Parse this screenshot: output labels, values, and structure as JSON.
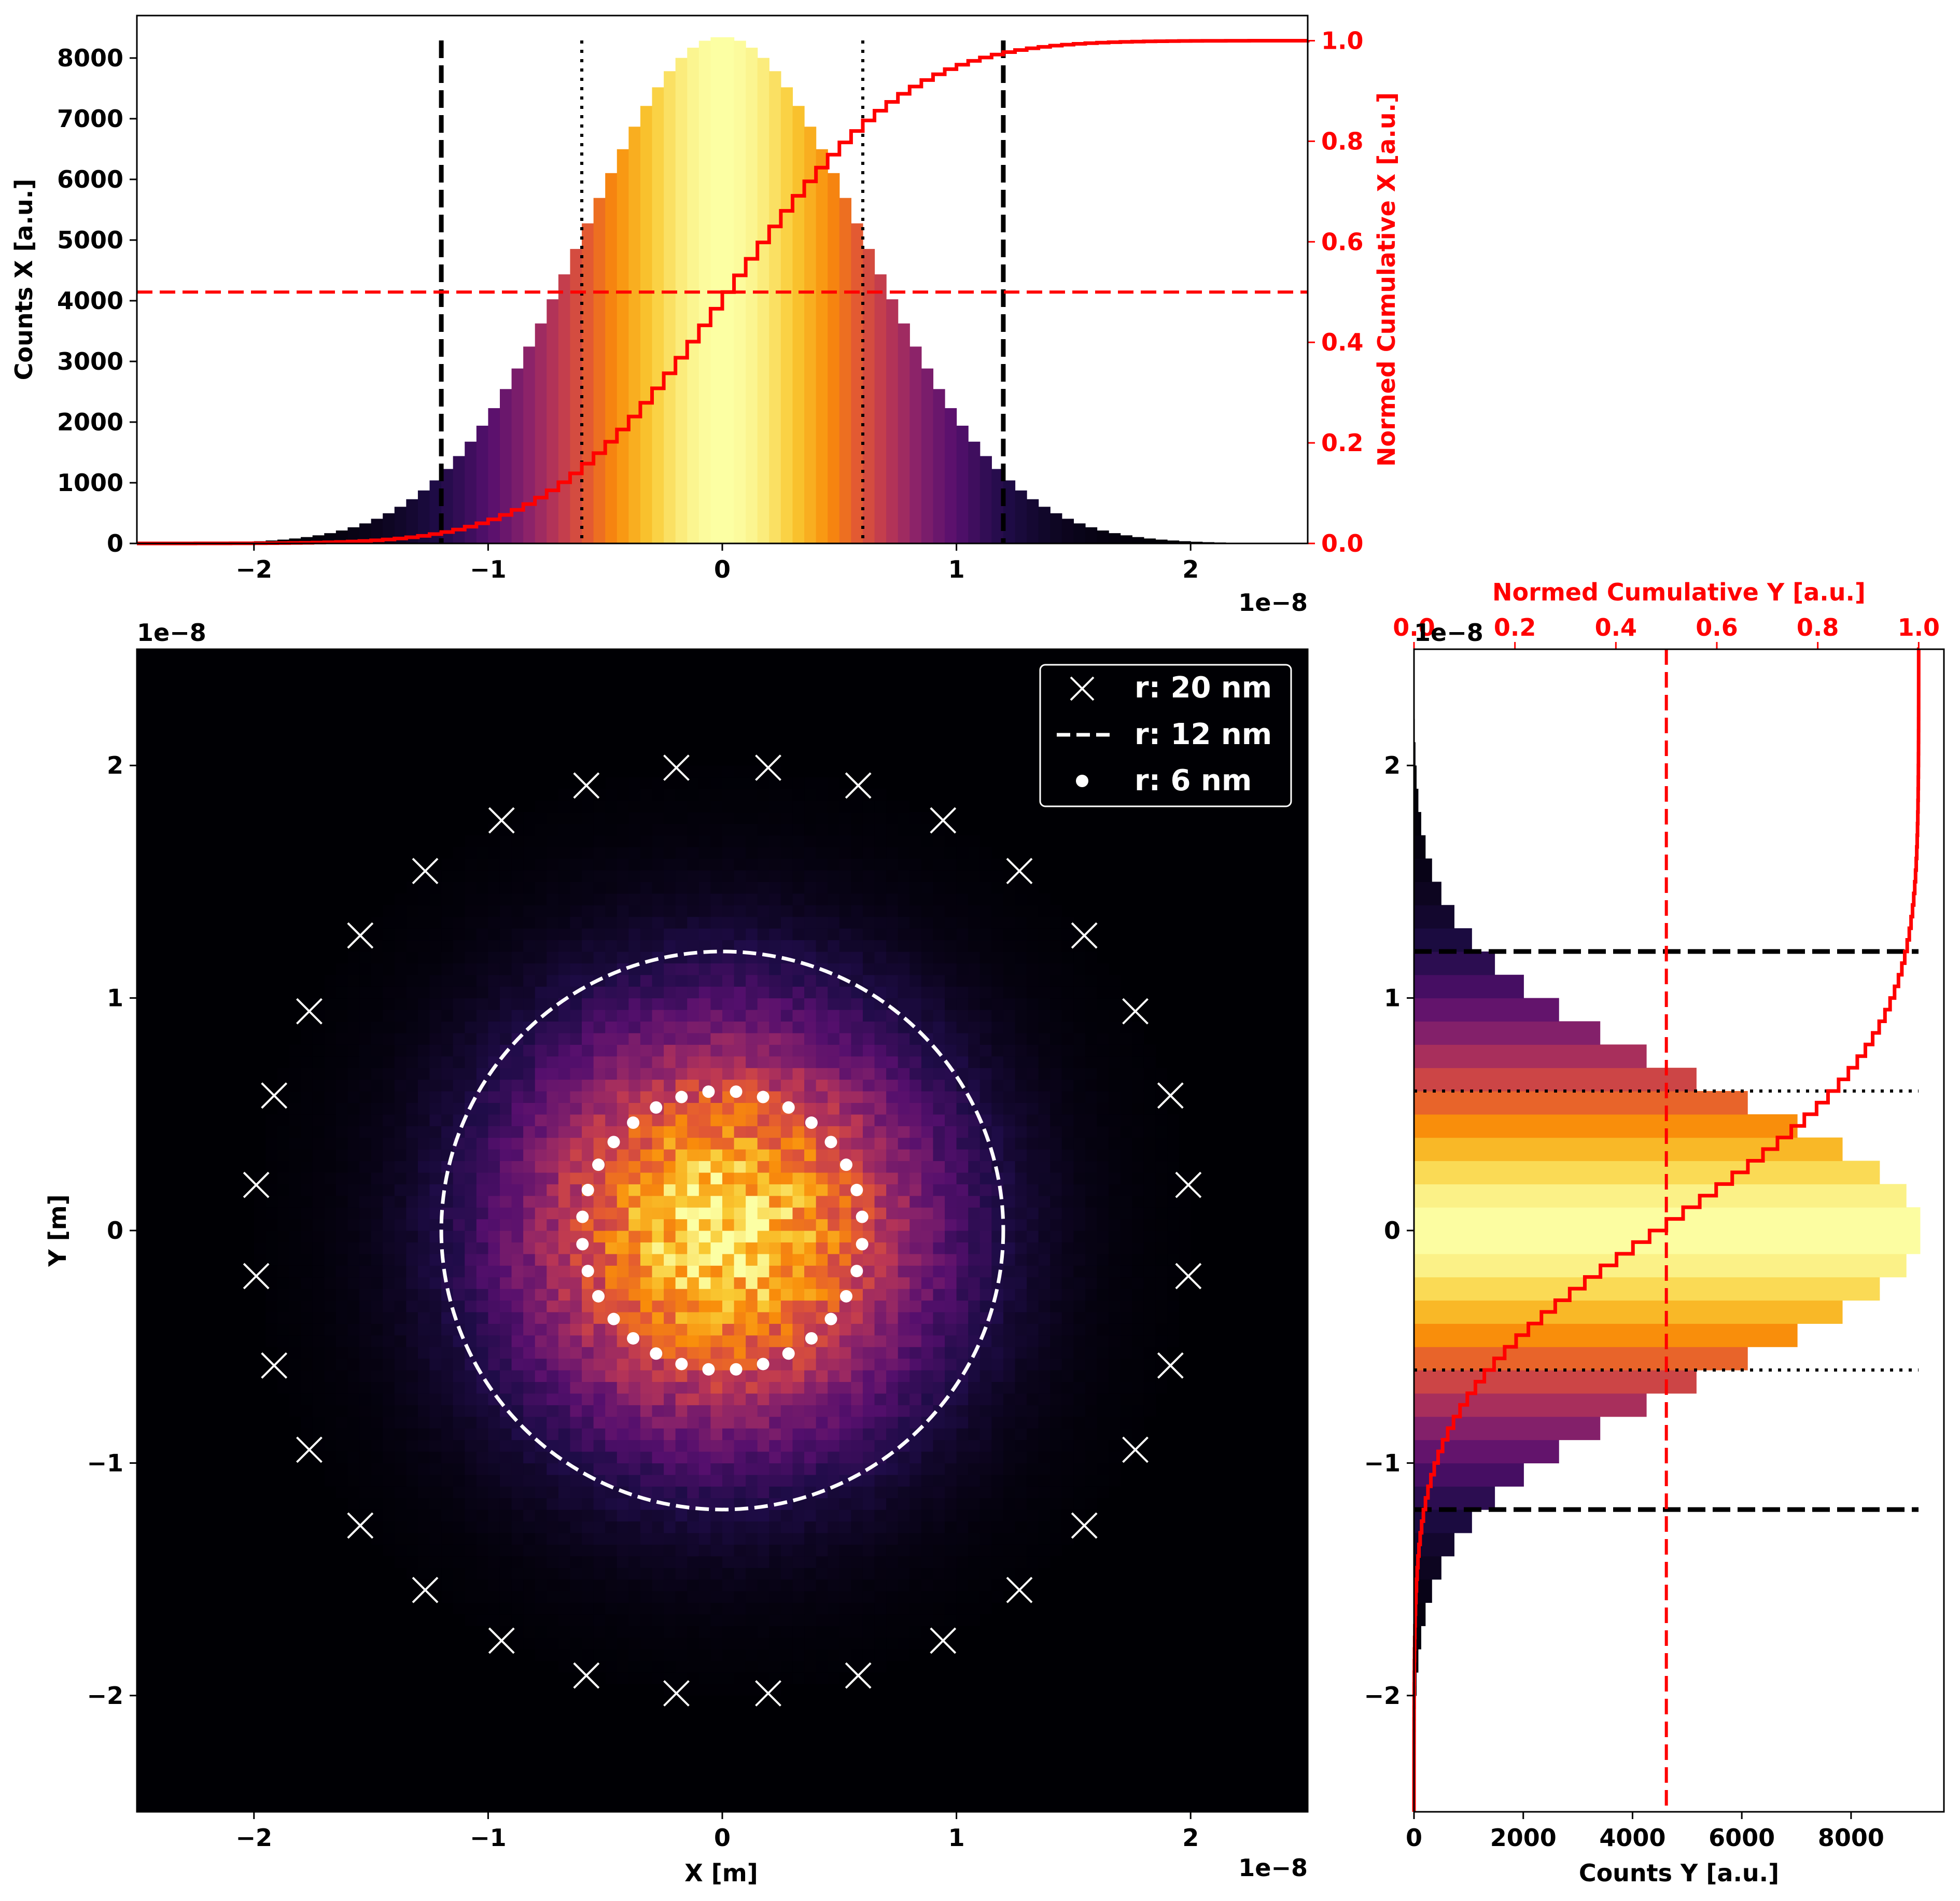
{
  "chart_data": [
    {
      "type": "bar",
      "panel": "top-histogram-x",
      "xlabel": "",
      "ylabel": "Counts X [a.u.]",
      "y2label": "Normed Cumulative X [a.u.]",
      "x_offset_text": "1e−8",
      "xlim": [
        -2.5,
        2.5
      ],
      "ylim": [
        0,
        8700
      ],
      "y2lim": [
        0,
        1.05
      ],
      "x_ticks": [
        -2,
        -1,
        0,
        1,
        2
      ],
      "x_tick_labels": [
        "−2",
        "−1",
        "0",
        "1",
        "2"
      ],
      "y_ticks": [
        0,
        1000,
        2000,
        3000,
        4000,
        5000,
        6000,
        7000,
        8000
      ],
      "y_tick_labels": [
        "0",
        "1000",
        "2000",
        "3000",
        "4000",
        "5000",
        "6000",
        "7000",
        "8000"
      ],
      "y2_ticks": [
        0,
        0.2,
        0.4,
        0.6,
        0.8,
        1.0
      ],
      "y2_tick_labels": [
        "0.0",
        "0.2",
        "0.4",
        "0.6",
        "0.8",
        "1.0"
      ],
      "bin_width": 0.05,
      "sigma": 0.6,
      "peak_count": 8350,
      "vlines_dashed": [
        -1.2,
        1.2
      ],
      "vlines_dotted": [
        -0.6,
        0.6
      ],
      "cumulative_half_line": 0.5,
      "colormap": "inferno"
    },
    {
      "type": "heatmap",
      "panel": "main-2d-histogram",
      "xlabel": "X [m]",
      "ylabel": "Y [m]",
      "x_offset_text": "1e−8",
      "y_offset_text": "1e−8",
      "xlim": [
        -2.5,
        2.5
      ],
      "ylim": [
        -2.5,
        2.5
      ],
      "x_ticks": [
        -2,
        -1,
        0,
        1,
        2
      ],
      "x_tick_labels": [
        "−2",
        "−1",
        "0",
        "1",
        "2"
      ],
      "y_ticks": [
        -2,
        -1,
        0,
        1,
        2
      ],
      "y_tick_labels": [
        "−2",
        "−1",
        "0",
        "1",
        "2"
      ],
      "bin_width": 0.05,
      "sigma": 0.6,
      "colormap": "inferno",
      "circles": [
        {
          "label": "r: 20 nm",
          "radius": 2.0,
          "marker": "x",
          "count": 32
        },
        {
          "label": "r: 12 nm",
          "radius": 1.2,
          "marker": "dashed-line"
        },
        {
          "label": "r: 6 nm",
          "radius": 0.6,
          "marker": "dot",
          "count": 32
        }
      ],
      "legend_position": "top-right"
    },
    {
      "type": "bar",
      "orientation": "horizontal",
      "panel": "right-histogram-y",
      "xlabel": "Counts Y [a.u.]",
      "x2label": "Normed Cumulative Y [a.u.]",
      "y_offset_text": "1e−8",
      "ylim": [
        -2.5,
        2.5
      ],
      "xlim": [
        0,
        9700
      ],
      "x2lim": [
        0,
        1.05
      ],
      "x_ticks": [
        0,
        2000,
        4000,
        6000,
        8000
      ],
      "x_tick_labels": [
        "0",
        "2000",
        "4000",
        "6000",
        "8000"
      ],
      "x2_ticks": [
        0,
        0.2,
        0.4,
        0.6,
        0.8,
        1.0
      ],
      "x2_tick_labels": [
        "0.0",
        "0.2",
        "0.4",
        "0.6",
        "0.8",
        "1.0"
      ],
      "y_ticks": [
        -2,
        -1,
        0,
        1,
        2
      ],
      "y_tick_labels": [
        "−2",
        "−1",
        "0",
        "1",
        "2"
      ],
      "bin_width": 0.1,
      "sigma": 0.6,
      "peak_count": 9300,
      "hlines_dashed": [
        -1.2,
        1.2
      ],
      "hlines_dotted": [
        -0.6,
        0.6
      ],
      "cumulative_half_line": 0.5,
      "colormap": "inferno"
    }
  ],
  "colors": {
    "cumulative": "#ff0000",
    "background_dark": "#000004",
    "reference_lines": "#000000",
    "overlay": "#ffffff"
  }
}
